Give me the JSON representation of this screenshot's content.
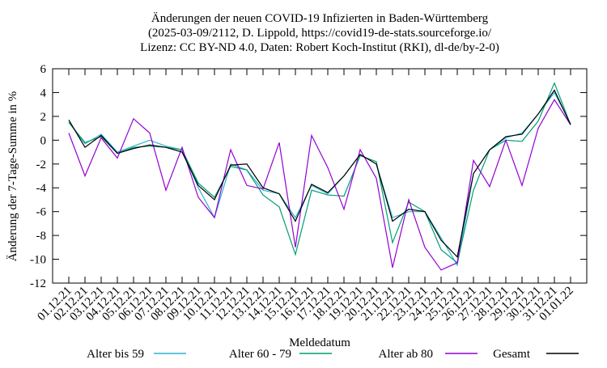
{
  "chart_data": {
    "type": "line",
    "title": [
      "Änderungen der neuen COVID-19 Infizierten in Baden-Württemberg",
      "(2025-03-09/2112, D. Lippold, https://covid19-de-stats.sourceforge.io/",
      "Lizenz: CC BY-ND 4.0, Daten: Robert Koch-Institut (RKI), dl-de/by-2-0)"
    ],
    "x_label": "Meldedatum",
    "y_label": "Änderung der 7-Tage-Summe in %",
    "categories": [
      "01.12.21",
      "02.12.21",
      "03.12.21",
      "04.12.21",
      "05.12.21",
      "06.12.21",
      "07.12.21",
      "08.12.21",
      "09.12.21",
      "10.12.21",
      "11.12.21",
      "12.12.21",
      "13.12.21",
      "14.12.21",
      "15.12.21",
      "16.12.21",
      "17.12.21",
      "18.12.21",
      "19.12.21",
      "20.12.21",
      "21.12.21",
      "22.12.21",
      "23.12.21",
      "24.12.21",
      "25.12.21",
      "26.12.21",
      "27.12.21",
      "28.12.21",
      "29.12.21",
      "30.12.21",
      "31.12.21",
      "01.01.22"
    ],
    "series": [
      {
        "name": "Alter bis 59",
        "color": "#2bb3cf",
        "values": [
          1.5,
          -0.3,
          0.5,
          -1.0,
          -0.5,
          0.0,
          -0.5,
          -0.8,
          -4.0,
          -6.5,
          -2.0,
          -2.5,
          -4.2,
          -4.5,
          -6.5,
          -3.8,
          -4.5,
          -3.0,
          -1.2,
          -2.0,
          -6.5,
          -6.0,
          -6.0,
          -8.2,
          -10.5,
          -2.8,
          -0.8,
          0.2,
          0.6,
          2.2,
          4.0,
          1.4
        ]
      },
      {
        "name": "Alter 60 - 79",
        "color": "#009e73",
        "values": [
          1.5,
          -0.2,
          0.3,
          -1.1,
          -0.6,
          -0.5,
          -0.6,
          -0.8,
          -3.6,
          -4.8,
          -2.2,
          -2.5,
          -4.6,
          -5.6,
          -9.6,
          -4.2,
          -4.6,
          -4.7,
          -1.3,
          -1.8,
          -8.6,
          -5.2,
          -6.0,
          -9.2,
          -10.3,
          -4.2,
          -0.8,
          0.0,
          -0.1,
          1.6,
          4.8,
          1.3
        ]
      },
      {
        "name": "Alter ab 80",
        "color": "#9400d3",
        "values": [
          0.6,
          -3.0,
          0.2,
          -1.5,
          1.8,
          0.6,
          -4.2,
          -0.6,
          -4.8,
          -6.5,
          -0.8,
          -3.8,
          -4.1,
          -0.2,
          -9.0,
          0.4,
          -2.3,
          -5.8,
          -0.8,
          -3.2,
          -10.7,
          -5.0,
          -9.0,
          -10.9,
          -10.3,
          -1.7,
          -3.9,
          0.0,
          -3.8,
          1.0,
          3.4,
          1.3
        ]
      },
      {
        "name": "Gesamt",
        "color": "#000000",
        "values": [
          1.7,
          -0.6,
          0.4,
          -1.1,
          -0.7,
          -0.4,
          -0.6,
          -1.0,
          -3.8,
          -5.0,
          -2.1,
          -2.0,
          -4.0,
          -4.5,
          -6.8,
          -3.7,
          -4.4,
          -3.0,
          -1.2,
          -2.0,
          -6.8,
          -5.8,
          -6.0,
          -8.4,
          -9.8,
          -2.8,
          -0.8,
          0.3,
          0.5,
          2.2,
          4.2,
          1.3
        ]
      }
    ],
    "ylim": [
      -12,
      6
    ],
    "yticks": [
      -12,
      -10,
      -8,
      -6,
      -4,
      -2,
      0,
      2,
      4,
      6
    ],
    "legend": "bottom",
    "grid": false
  }
}
